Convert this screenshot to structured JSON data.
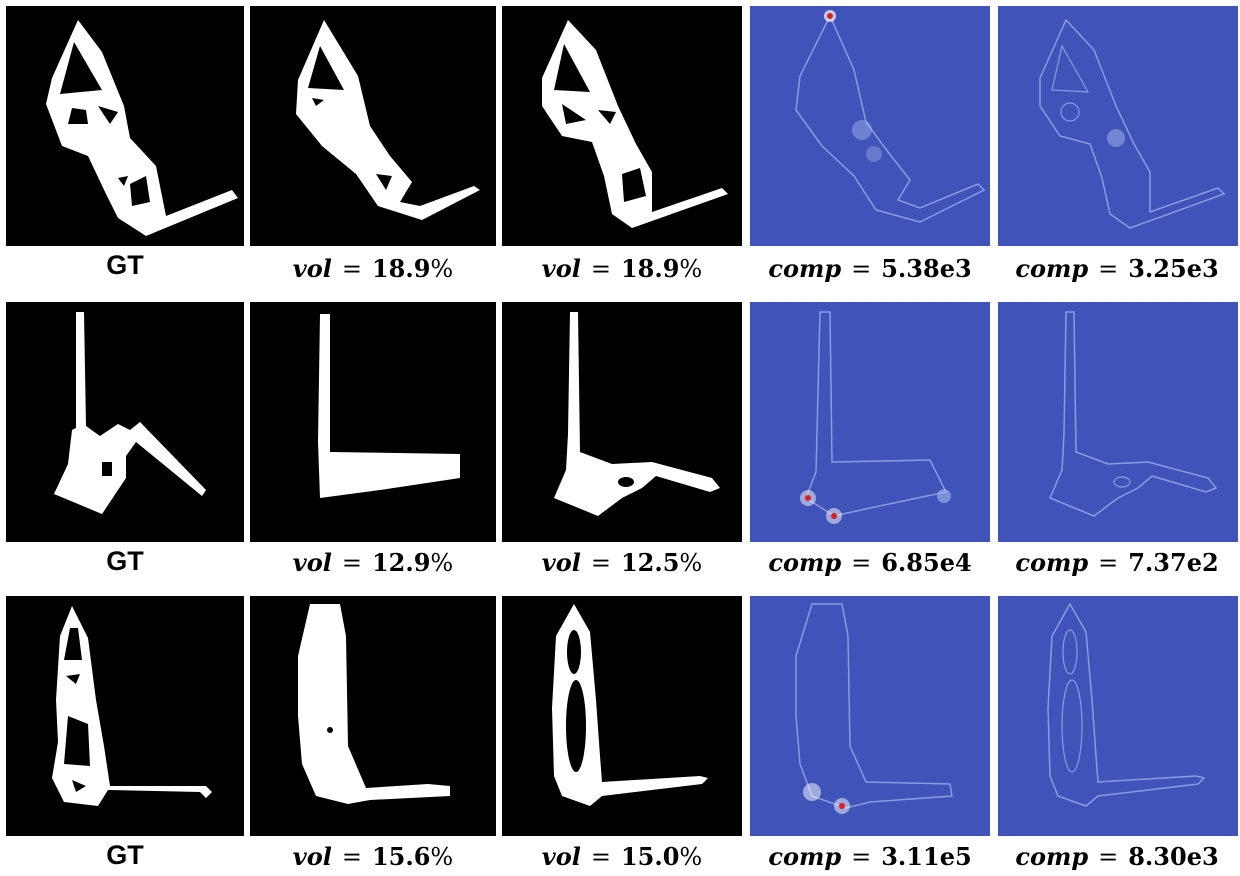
{
  "colors": {
    "mask_bg": "#000000",
    "mask_fg": "#ffffff",
    "heat_bg": "#3f53b8",
    "heat_line": "#8c9be0",
    "hot": "#d82020"
  },
  "rows": [
    {
      "gt_label": "GT",
      "vol_a": {
        "var": "vol",
        "eq": "=",
        "value": "18.9",
        "unit": "%"
      },
      "vol_b": {
        "var": "vol",
        "eq": "=",
        "value": "18.9",
        "unit": "%"
      },
      "comp_a": {
        "var": "comp",
        "eq": "=",
        "value": "5.38e3"
      },
      "comp_b": {
        "var": "comp",
        "eq": "=",
        "value": "3.25e3"
      }
    },
    {
      "gt_label": "GT",
      "vol_a": {
        "var": "vol",
        "eq": "=",
        "value": "12.9",
        "unit": "%"
      },
      "vol_b": {
        "var": "vol",
        "eq": "=",
        "value": "12.5",
        "unit": "%"
      },
      "comp_a": {
        "var": "comp",
        "eq": "=",
        "value": "6.85e4"
      },
      "comp_b": {
        "var": "comp",
        "eq": "=",
        "value": "7.37e2"
      }
    },
    {
      "gt_label": "GT",
      "vol_a": {
        "var": "vol",
        "eq": "=",
        "value": "15.6",
        "unit": "%"
      },
      "vol_b": {
        "var": "vol",
        "eq": "=",
        "value": "15.0",
        "unit": "%"
      },
      "comp_a": {
        "var": "comp",
        "eq": "=",
        "value": "3.11e5"
      },
      "comp_b": {
        "var": "comp",
        "eq": "=",
        "value": "8.30e3"
      }
    }
  ]
}
